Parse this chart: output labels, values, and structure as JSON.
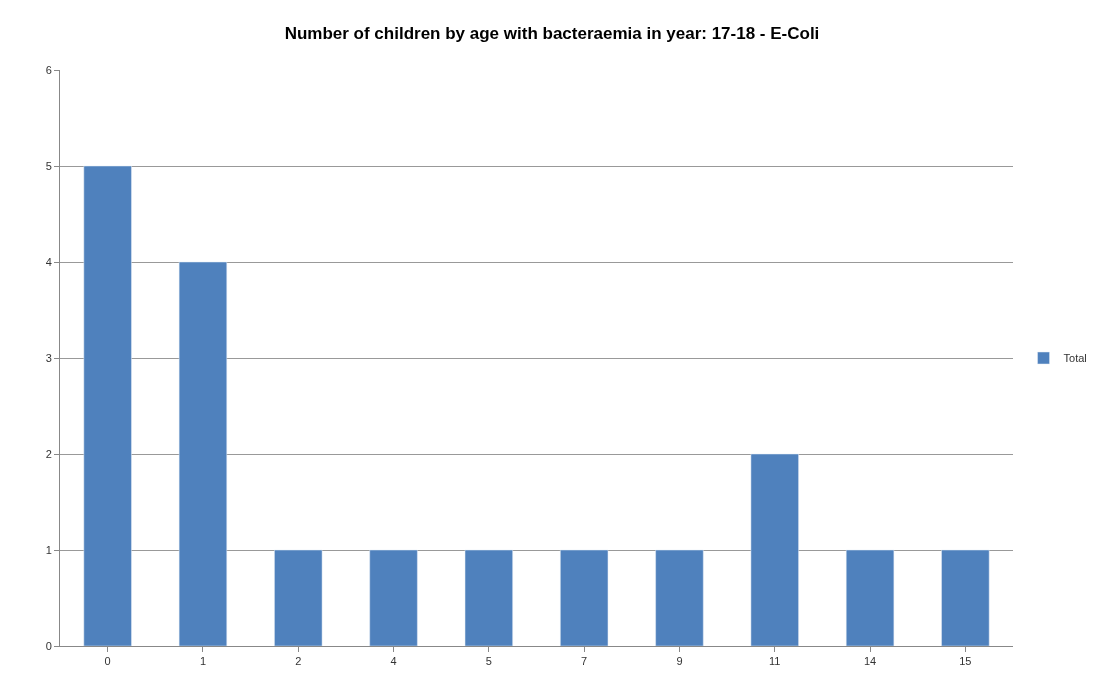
{
  "chart_data": {
    "type": "bar",
    "title": "Number of children by age with bacteraemia in year: 17-18 - E-Coli",
    "categories": [
      "0",
      "1",
      "2",
      "4",
      "5",
      "7",
      "9",
      "11",
      "14",
      "15"
    ],
    "series": [
      {
        "name": "Total",
        "color": "#4f81bd",
        "values": [
          5,
          4,
          1,
          1,
          1,
          1,
          1,
          2,
          1,
          1
        ]
      }
    ],
    "ylim": [
      0,
      6
    ],
    "yticks": [
      0,
      1,
      2,
      3,
      4,
      5,
      6
    ],
    "grid": "y",
    "legend": "right"
  }
}
